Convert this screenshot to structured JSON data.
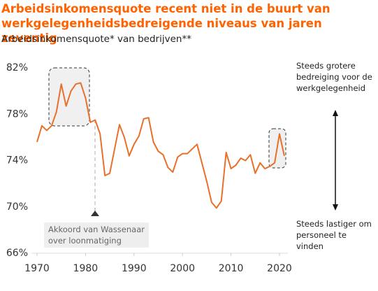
{
  "chart_data": {
    "type": "line",
    "title": "Arbeidsinkomensquote recent niet in de buurt van werkgelegenheidsbedreigende niveaus van jaren zeventig",
    "subtitle": "Arbeidsinkomensquote* van bedrijven**",
    "annotations": [
      "Steeds grotere bedreiging voor de werkgelegenheid",
      "Steeds lastiger om personeel te vinden",
      "Akkoord van Wassenaar over loonmatiging"
    ],
    "x": [
      1970,
      1971,
      1972,
      1973,
      1974,
      1975,
      1976,
      1977,
      1978,
      1979,
      1980,
      1981,
      1982,
      1983,
      1984,
      1985,
      1986,
      1987,
      1988,
      1989,
      1990,
      1991,
      1992,
      1993,
      1994,
      1995,
      1996,
      1997,
      1998,
      1999,
      2000,
      2001,
      2002,
      2003,
      2004,
      2005,
      2006,
      2007,
      2008,
      2009,
      2010,
      2011,
      2012,
      2013,
      2014,
      2015,
      2016,
      2017,
      2018,
      2019,
      2020,
      2021
    ],
    "series": [
      {
        "color": "#e8702a",
        "values": [
          75.6,
          77.0,
          76.6,
          77.0,
          78.2,
          80.6,
          78.7,
          80.0,
          80.6,
          80.7,
          79.4,
          77.3,
          77.5,
          76.3,
          72.7,
          72.9,
          75.0,
          77.1,
          76.0,
          74.4,
          75.4,
          76.1,
          77.6,
          77.7,
          75.6,
          74.8,
          74.5,
          73.4,
          73.0,
          74.3,
          74.6,
          74.6,
          75.0,
          75.4,
          73.8,
          72.2,
          70.4,
          69.9,
          70.5,
          74.7,
          73.3,
          73.6,
          74.2,
          74.0,
          74.5,
          72.9,
          73.8,
          73.3,
          73.5,
          73.8,
          76.3,
          74.4
        ]
      }
    ],
    "xlim": [
      1970,
      2020
    ],
    "xticks": [
      1970,
      1980,
      1990,
      2000,
      2010,
      2020
    ],
    "ylim": [
      66,
      82
    ],
    "yticks": [
      {
        "value": 66,
        "label": "66%"
      },
      {
        "value": 70,
        "label": "70%"
      },
      {
        "value": 74,
        "label": "74%"
      },
      {
        "value": 78,
        "label": "78%"
      },
      {
        "value": 82,
        "label": "82%"
      }
    ],
    "grid": false
  }
}
